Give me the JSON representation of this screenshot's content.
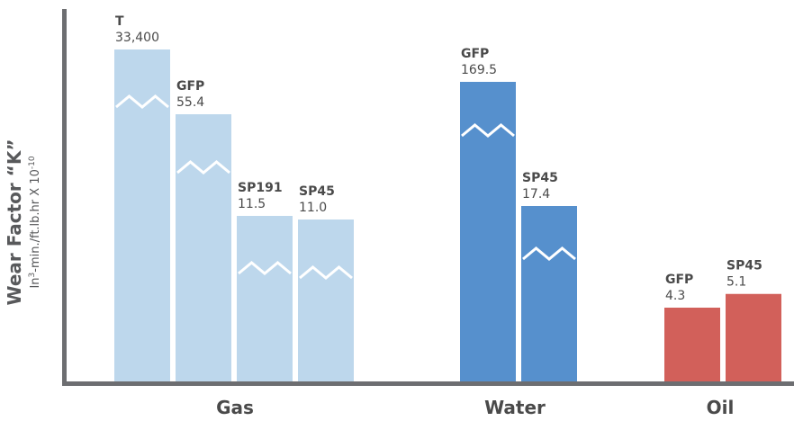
{
  "chart_data": {
    "type": "bar",
    "ylabel": "Wear Factor “K”",
    "ylabel_units": {
      "base": "In",
      "sup": "3",
      "mid": "-min./ft.lb.hr X 10",
      "exp": "-10"
    },
    "axis_break_marks": true,
    "colors": {
      "Gas": "#bdd7ec",
      "Water": "#5690cd",
      "Oil": "#d2605a",
      "axis": "#6d6e71"
    },
    "groups": [
      {
        "category": "Gas",
        "bars": [
          {
            "name": "T",
            "value": 33400,
            "value_label": "33,400",
            "broken": true
          },
          {
            "name": "GFP",
            "value": 55.4,
            "value_label": "55.4",
            "broken": true
          },
          {
            "name": "SP191",
            "value": 11.5,
            "value_label": "11.5",
            "broken": true
          },
          {
            "name": "SP45",
            "value": 11.0,
            "value_label": "11.0",
            "broken": true
          }
        ]
      },
      {
        "category": "Water",
        "bars": [
          {
            "name": "GFP",
            "value": 169.5,
            "value_label": "169.5",
            "broken": true
          },
          {
            "name": "SP45",
            "value": 17.4,
            "value_label": "17.4",
            "broken": true
          }
        ]
      },
      {
        "category": "Oil",
        "bars": [
          {
            "name": "GFP",
            "value": 4.3,
            "value_label": "4.3",
            "broken": false
          },
          {
            "name": "SP45",
            "value": 5.1,
            "value_label": "5.1",
            "broken": false
          }
        ]
      }
    ]
  }
}
